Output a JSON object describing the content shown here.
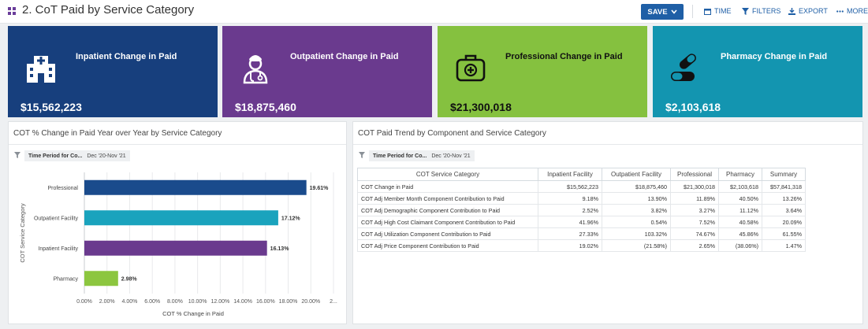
{
  "header": {
    "title": "2. CoT Paid by Service Category",
    "save_label": "SAVE",
    "time_label": "TIME",
    "filters_label": "FILTERS",
    "export_label": "EXPORT",
    "more_label": "MORE"
  },
  "kpis": [
    {
      "title": "Inpatient Change in Paid",
      "value": "$15,562,223",
      "color": "#173f7d",
      "icon": "hospital-icon"
    },
    {
      "title": "Outpatient Change in Paid",
      "value": "$18,875,460",
      "color": "#6a3a8e",
      "icon": "doctor-icon"
    },
    {
      "title": "Professional Change in Paid",
      "value": "$21,300,018",
      "color": "#85c13f",
      "icon": "medical-kit-icon"
    },
    {
      "title": "Pharmacy Change in Paid",
      "value": "$2,103,618",
      "color": "#1395b0",
      "icon": "pills-icon"
    }
  ],
  "left_panel": {
    "title": "COT % Change in Paid Year over Year by Service Category",
    "filter_label": "Time Period for Co...",
    "filter_value": "Dec '20-Nov '21"
  },
  "right_panel": {
    "title": "COT Paid Trend by Component and Service Category",
    "filter_label": "Time Period for Co...",
    "filter_value": "Dec '20-Nov '21"
  },
  "chart_data": {
    "type": "bar",
    "orientation": "horizontal",
    "categories": [
      "Professional",
      "Outpatient Facility",
      "Inpatient Facility",
      "Pharmacy"
    ],
    "values": [
      19.61,
      17.12,
      16.13,
      2.98
    ],
    "value_labels": [
      "19.61%",
      "17.12%",
      "16.13%",
      "2.98%"
    ],
    "colors": [
      "#1a4b8c",
      "#1aa3bd",
      "#6a3a8e",
      "#8cc63f"
    ],
    "xlabel": "COT % Change in Paid",
    "ylabel": "COT Service Category",
    "xlim": [
      0,
      22
    ],
    "x_ticks": [
      "0.00%",
      "2.00%",
      "4.00%",
      "6.00%",
      "8.00%",
      "10.00%",
      "12.00%",
      "14.00%",
      "16.00%",
      "18.00%",
      "20.00%",
      "2..."
    ],
    "grid": true
  },
  "table": {
    "headers": [
      "COT Service Category",
      "Inpatient Facility",
      "Outpatient Facility",
      "Professional",
      "Pharmacy",
      "Summary"
    ],
    "rows": [
      [
        "COT Change in Paid",
        "$15,562,223",
        "$18,875,460",
        "$21,300,018",
        "$2,103,618",
        "$57,841,318"
      ],
      [
        "COT Adj Member Month Component Contribution to Paid",
        "9.18%",
        "13.90%",
        "11.89%",
        "40.50%",
        "13.26%"
      ],
      [
        "COT Adj Demographic Component Contribution to Paid",
        "2.52%",
        "3.82%",
        "3.27%",
        "11.12%",
        "3.64%"
      ],
      [
        "COT Adj High Cost Claimant Component Contribution to Paid",
        "41.96%",
        "0.54%",
        "7.52%",
        "40.58%",
        "20.09%"
      ],
      [
        "COT Adj Utilization Component Contribution to Paid",
        "27.33%",
        "103.32%",
        "74.67%",
        "45.86%",
        "61.55%"
      ],
      [
        "COT Adj Price Component Contribution to Paid",
        "19.02%",
        "(21.58%)",
        "2.65%",
        "(38.06%)",
        "1.47%"
      ]
    ]
  }
}
